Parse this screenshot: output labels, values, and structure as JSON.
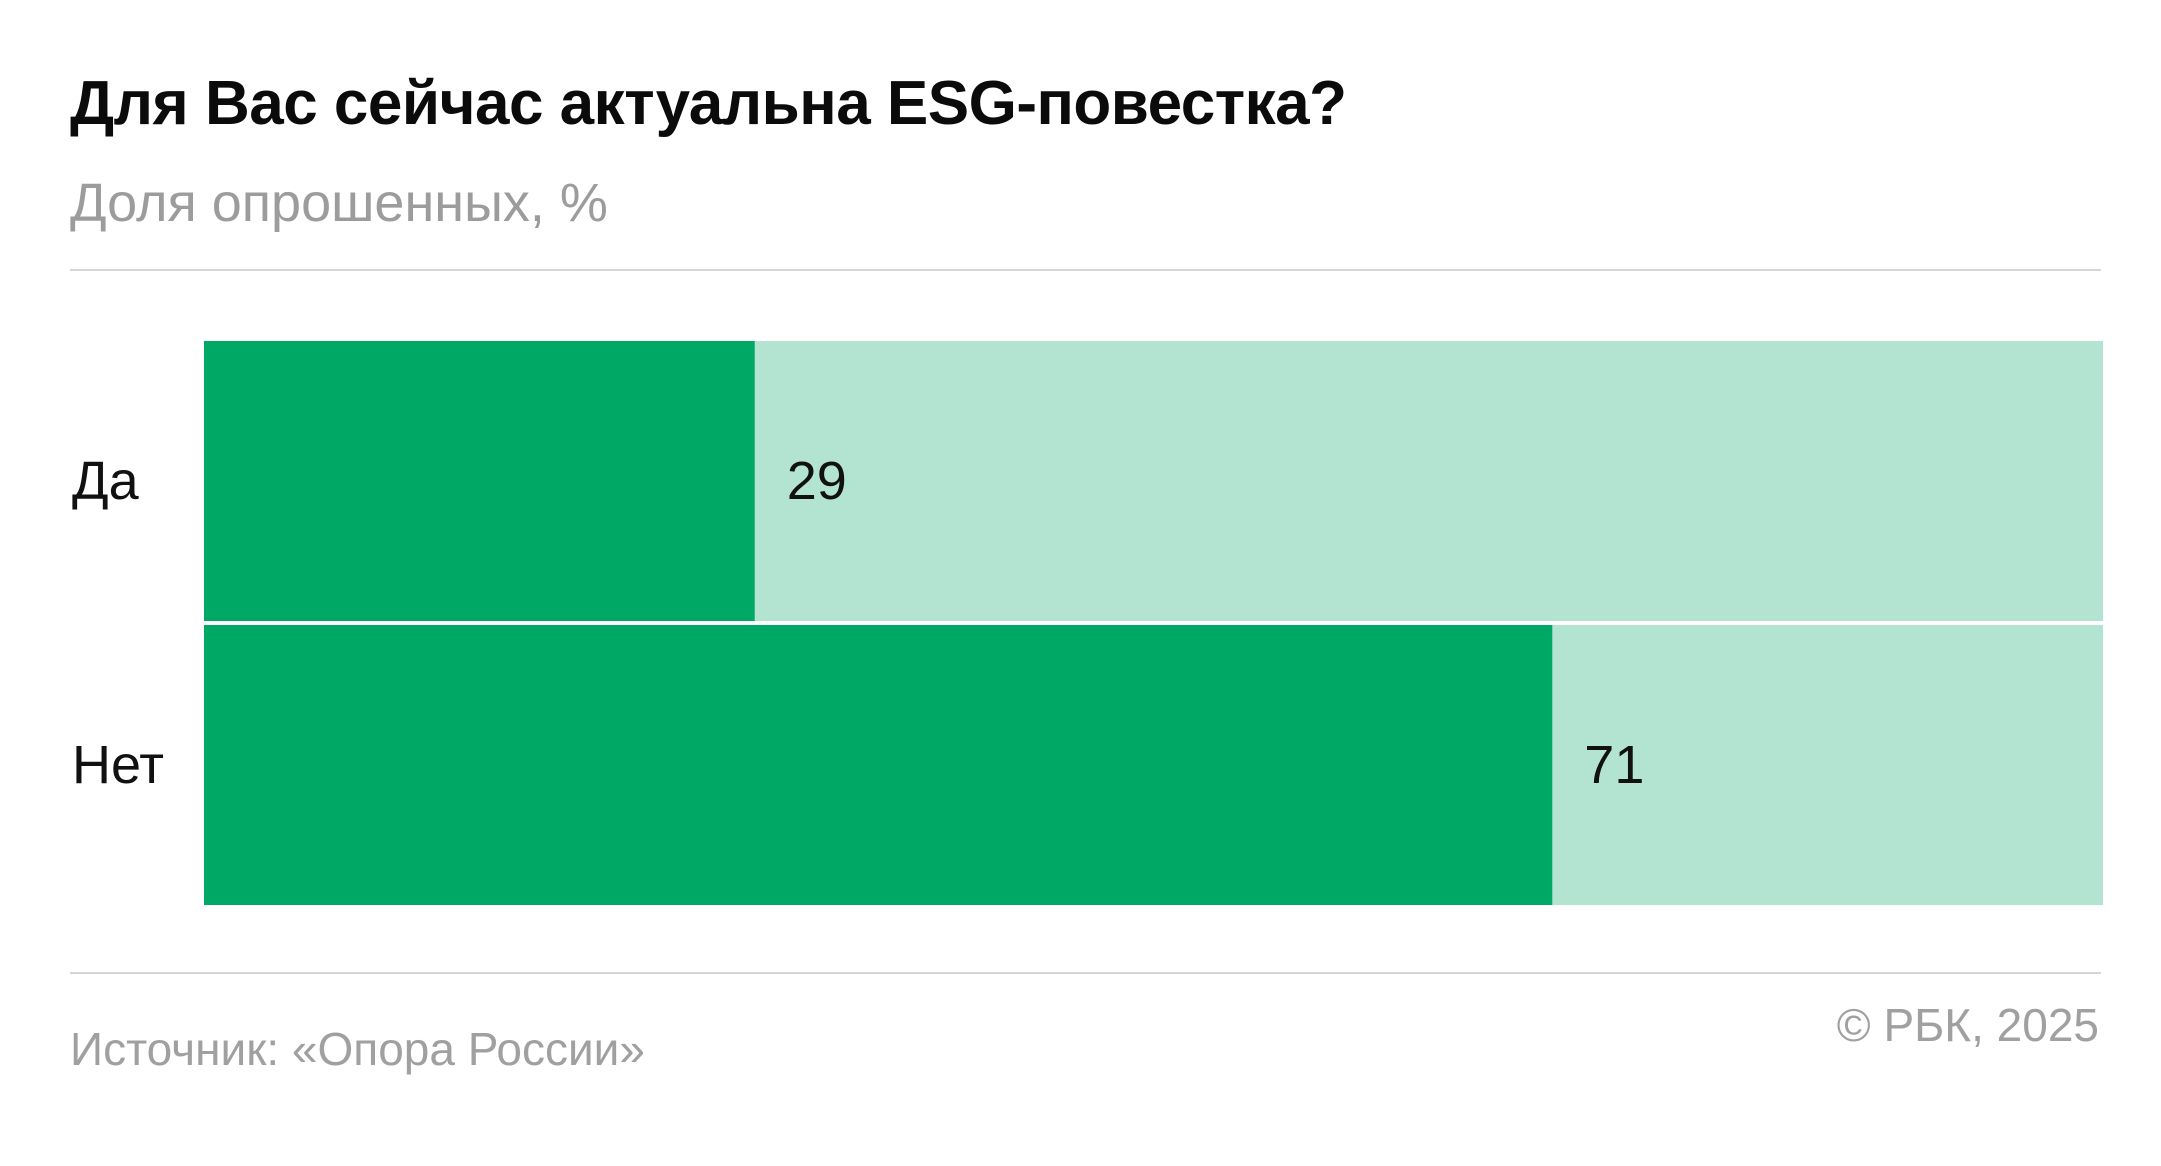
{
  "header": {
    "title": "Для Вас сейчас актуальна ESG-повестка?",
    "subtitle": "Доля опрошенных, %"
  },
  "footer": {
    "source": "Источник: «Опора России»",
    "copyright": "© РБК, 2025"
  },
  "colors": {
    "bar_fill": "#00a866",
    "bar_track": "#b3e4d2",
    "text": "#111111",
    "muted": "#9c9c9c"
  },
  "chart_data": {
    "type": "bar",
    "orientation": "horizontal",
    "title": "Для Вас сейчас актуальна ESG-повестка?",
    "subtitle": "Доля опрошенных, %",
    "categories": [
      "Да",
      "Нет"
    ],
    "values": [
      29,
      71
    ],
    "data_labels": [
      "29",
      "71"
    ],
    "xlim": [
      0,
      100
    ],
    "grid": false,
    "legend": "none"
  }
}
